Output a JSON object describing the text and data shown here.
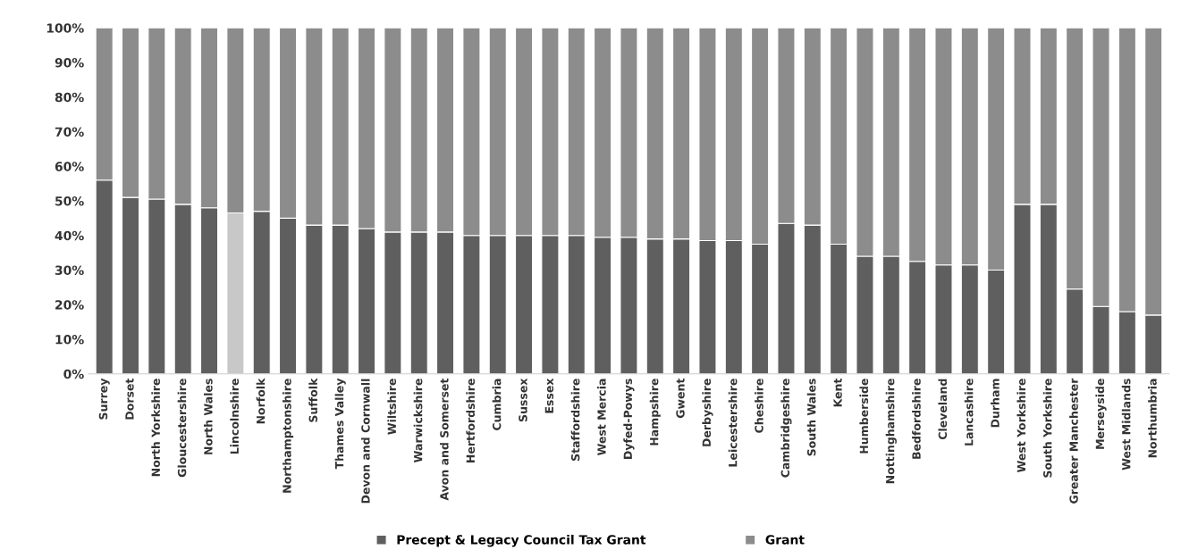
{
  "chart_data": {
    "type": "bar",
    "stacked": true,
    "categories": [
      "Surrey",
      "Dorset",
      "North Yorkshire",
      "Gloucestershire",
      "North Wales",
      "Lincolnshire",
      "Norfolk",
      "Northamptonshire",
      "Suffolk",
      "Thames Valley",
      "Devon and Cornwall",
      "Wiltshire",
      "Warwickshire",
      "Avon and Somerset",
      "Hertfordshire",
      "Cumbria",
      "Sussex",
      "Essex",
      "Staffordshire",
      "West Mercia",
      "Dyfed-Powys",
      "Hampshire",
      "Gwent",
      "Derbyshire",
      "Leicestershire",
      "Cheshire",
      "Cambridgeshire",
      "South Wales",
      "Kent",
      "Humberside",
      "Nottinghamshire",
      "Bedfordshire",
      "Cleveland",
      "Lancashire",
      "Durham",
      "West Yorkshire",
      "South Yorkshire",
      "Greater Manchester",
      "Merseyside",
      "West Midlands",
      "Northumbria"
    ],
    "series": [
      {
        "name": "Precept & Legacy Council Tax Grant",
        "color": "#5f5f5f",
        "colors": [
          "#5f5f5f",
          "#5f5f5f",
          "#5f5f5f",
          "#5f5f5f",
          "#5f5f5f",
          "#c8c8c8",
          "#5f5f5f",
          "#5f5f5f",
          "#5f5f5f",
          "#5f5f5f",
          "#5f5f5f",
          "#5f5f5f",
          "#5f5f5f",
          "#5f5f5f",
          "#5f5f5f",
          "#5f5f5f",
          "#5f5f5f",
          "#5f5f5f",
          "#5f5f5f",
          "#5f5f5f",
          "#5f5f5f",
          "#5f5f5f",
          "#5f5f5f",
          "#5f5f5f",
          "#5f5f5f",
          "#5f5f5f",
          "#5f5f5f",
          "#5f5f5f",
          "#5f5f5f",
          "#5f5f5f",
          "#5f5f5f",
          "#5f5f5f",
          "#5f5f5f",
          "#5f5f5f",
          "#5f5f5f",
          "#5f5f5f",
          "#5f5f5f",
          "#5f5f5f",
          "#5f5f5f",
          "#5f5f5f",
          "#5f5f5f"
        ],
        "values": [
          56,
          51,
          50.5,
          49,
          48,
          46.5,
          47,
          45,
          43,
          43,
          42,
          41,
          41,
          41,
          40,
          40,
          40,
          40,
          40,
          39.5,
          39.5,
          39,
          39,
          38.5,
          38.5,
          37.5,
          43.5,
          43,
          37.5,
          34,
          34,
          32.5,
          31.5,
          31.5,
          30,
          49,
          49,
          24.5,
          19.5,
          18,
          17
        ]
      },
      {
        "name": "Grant",
        "color": "#8c8c8c",
        "values": [
          44,
          49,
          49.5,
          51,
          52,
          53.5,
          53,
          55,
          57,
          57,
          58,
          59,
          59,
          59,
          60,
          60,
          60,
          60,
          60,
          60.5,
          60.5,
          61,
          61,
          61.5,
          61.5,
          62.5,
          56.5,
          57,
          62.5,
          66,
          66,
          67.5,
          68.5,
          68.5,
          70,
          51,
          51,
          75.5,
          80.5,
          82,
          83
        ]
      }
    ],
    "ylim": [
      0,
      100
    ],
    "yticks": [
      {
        "value": 0,
        "label": "0%"
      },
      {
        "value": 10,
        "label": "10%"
      },
      {
        "value": 20,
        "label": "20%"
      },
      {
        "value": 30,
        "label": "30%"
      },
      {
        "value": 40,
        "label": "40%"
      },
      {
        "value": 50,
        "label": "50%"
      },
      {
        "value": 60,
        "label": "60%"
      },
      {
        "value": 70,
        "label": "70%"
      },
      {
        "value": 80,
        "label": "80%"
      },
      {
        "value": 90,
        "label": "90%"
      },
      {
        "value": 100,
        "label": "100%"
      }
    ],
    "legend": "bottom",
    "grid": false
  }
}
